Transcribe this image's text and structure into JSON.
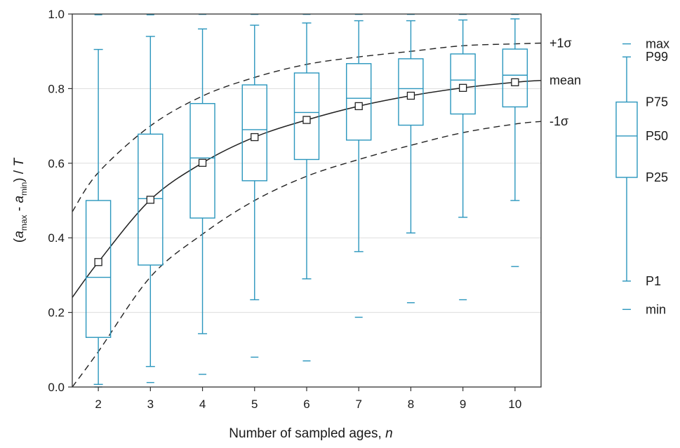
{
  "chart_data": {
    "type": "box",
    "xlabel": "Number of sampled ages, n",
    "ylabel": "(a_max - a_min) / T",
    "ylabel_parts": {
      "open": "(",
      "a1": "a",
      "s1": "max",
      "mid": " - ",
      "a2": "a",
      "s2": "min",
      "close": ") / ",
      "T": "T"
    },
    "xlabel_parts": {
      "text": "Number of sampled ages, ",
      "n": "n"
    },
    "xlim": [
      1.5,
      10.5
    ],
    "ylim": [
      0,
      1
    ],
    "xticks": [
      2,
      3,
      4,
      5,
      6,
      7,
      8,
      9,
      10
    ],
    "yticks": [
      0.0,
      0.2,
      0.4,
      0.6,
      0.8,
      1.0
    ],
    "ytick_labels": [
      "0.0",
      "0.2",
      "0.4",
      "0.6",
      "0.8",
      "1.0"
    ],
    "grid": "horizontal",
    "colors": {
      "box": "#2a96bd",
      "curve": "#222222",
      "grid": "#dddddd",
      "axis": "#333333"
    },
    "boxes": [
      {
        "n": 2,
        "min": 0.0,
        "p1": 0.007,
        "p25": 0.133,
        "p50": 0.294,
        "p75": 0.5,
        "p99": 0.905,
        "max": 0.998,
        "mean": 0.335
      },
      {
        "n": 3,
        "min": 0.012,
        "p1": 0.055,
        "p25": 0.327,
        "p50": 0.505,
        "p75": 0.678,
        "p99": 0.94,
        "max": 0.998,
        "mean": 0.502
      },
      {
        "n": 4,
        "min": 0.034,
        "p1": 0.143,
        "p25": 0.453,
        "p50": 0.614,
        "p75": 0.76,
        "p99": 0.96,
        "max": 0.999,
        "mean": 0.601
      },
      {
        "n": 5,
        "min": 0.08,
        "p1": 0.234,
        "p25": 0.553,
        "p50": 0.69,
        "p75": 0.81,
        "p99": 0.97,
        "max": 0.999,
        "mean": 0.67
      },
      {
        "n": 6,
        "min": 0.07,
        "p1": 0.29,
        "p25": 0.61,
        "p50": 0.736,
        "p75": 0.842,
        "p99": 0.976,
        "max": 0.999,
        "mean": 0.716
      },
      {
        "n": 7,
        "min": 0.187,
        "p1": 0.363,
        "p25": 0.662,
        "p50": 0.774,
        "p75": 0.867,
        "p99": 0.982,
        "max": 0.999,
        "mean": 0.753
      },
      {
        "n": 8,
        "min": 0.226,
        "p1": 0.413,
        "p25": 0.702,
        "p50": 0.8,
        "p75": 0.88,
        "p99": 0.982,
        "max": 0.999,
        "mean": 0.781
      },
      {
        "n": 9,
        "min": 0.234,
        "p1": 0.455,
        "p25": 0.732,
        "p50": 0.823,
        "p75": 0.893,
        "p99": 0.984,
        "max": 0.999,
        "mean": 0.802
      },
      {
        "n": 10,
        "min": 0.323,
        "p1": 0.5,
        "p25": 0.751,
        "p50": 0.836,
        "p75": 0.906,
        "p99": 0.987,
        "max": 0.999,
        "mean": 0.817
      }
    ],
    "curves": [
      {
        "label": "+1σ",
        "style": "dashed",
        "points": [
          [
            1.5,
            0.47
          ],
          [
            2,
            0.575
          ],
          [
            3,
            0.7
          ],
          [
            4,
            0.78
          ],
          [
            5,
            0.83
          ],
          [
            6,
            0.865
          ],
          [
            7,
            0.885
          ],
          [
            8,
            0.9
          ],
          [
            9,
            0.915
          ],
          [
            10,
            0.92
          ],
          [
            10.5,
            0.922
          ]
        ]
      },
      {
        "label": "mean",
        "style": "solid",
        "points": [
          [
            1.5,
            0.24
          ],
          [
            2,
            0.335
          ],
          [
            3,
            0.502
          ],
          [
            4,
            0.601
          ],
          [
            5,
            0.67
          ],
          [
            6,
            0.716
          ],
          [
            7,
            0.753
          ],
          [
            8,
            0.781
          ],
          [
            9,
            0.802
          ],
          [
            10,
            0.817
          ],
          [
            10.5,
            0.822
          ]
        ]
      },
      {
        "label": "-1σ",
        "style": "dashed",
        "points": [
          [
            1.5,
            0.0
          ],
          [
            2,
            0.095
          ],
          [
            3,
            0.295
          ],
          [
            4,
            0.41
          ],
          [
            5,
            0.5
          ],
          [
            6,
            0.565
          ],
          [
            7,
            0.61
          ],
          [
            8,
            0.648
          ],
          [
            9,
            0.682
          ],
          [
            10,
            0.705
          ],
          [
            10.5,
            0.712
          ]
        ]
      }
    ],
    "curve_labels": {
      "plus": "+1σ",
      "mean": "mean",
      "minus": "-1σ"
    },
    "legend": {
      "placement": "right",
      "labels": {
        "max": "max",
        "p99": "P99",
        "p75": "P75",
        "p50": "P50",
        "p25": "P25",
        "p1": "P1",
        "min": "min"
      },
      "levels": {
        "max": 0.92,
        "p99": 0.885,
        "p75": 0.764,
        "p50": 0.673,
        "p25": 0.562,
        "p1": 0.284,
        "min": 0.208
      }
    }
  }
}
